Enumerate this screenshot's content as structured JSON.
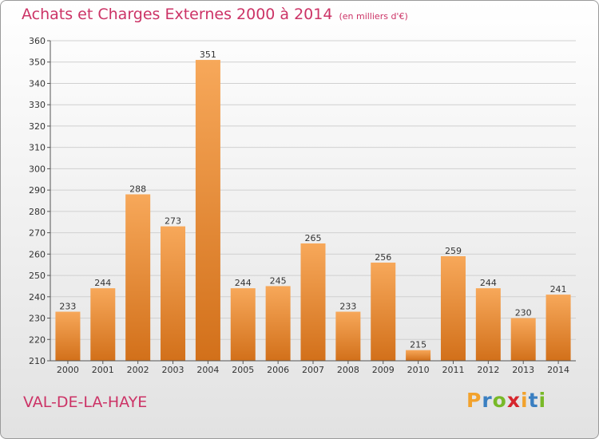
{
  "title": "Achats et Charges Externes 2000 à 2014",
  "unit_note": "(en milliers d'€)",
  "town": "VAL-DE-LA-HAYE",
  "logo": {
    "letters": [
      "P",
      "r",
      "o",
      "x",
      "i",
      "t",
      "i"
    ],
    "colors": [
      "#f2a22c",
      "#3a7fc1",
      "#78b928",
      "#d6262d",
      "#f2a22c",
      "#3a7fc1",
      "#78b928"
    ]
  },
  "colors": {
    "bar_top": "#f7a85a",
    "bar_bottom": "#d2701a",
    "title": "#cc3366"
  },
  "chart_data": {
    "type": "bar",
    "title": "Achats et Charges Externes 2000 à 2014",
    "xlabel": "",
    "ylabel": "",
    "categories": [
      "2000",
      "2001",
      "2002",
      "2003",
      "2004",
      "2005",
      "2006",
      "2007",
      "2008",
      "2009",
      "2010",
      "2011",
      "2012",
      "2013",
      "2014"
    ],
    "values": [
      233,
      244,
      288,
      273,
      351,
      244,
      245,
      265,
      233,
      256,
      215,
      259,
      244,
      230,
      241
    ],
    "ylim": [
      210,
      360
    ],
    "yticks": [
      210,
      220,
      230,
      240,
      250,
      260,
      270,
      280,
      290,
      300,
      310,
      320,
      330,
      340,
      350,
      360
    ],
    "grid": true,
    "legend": "none"
  }
}
